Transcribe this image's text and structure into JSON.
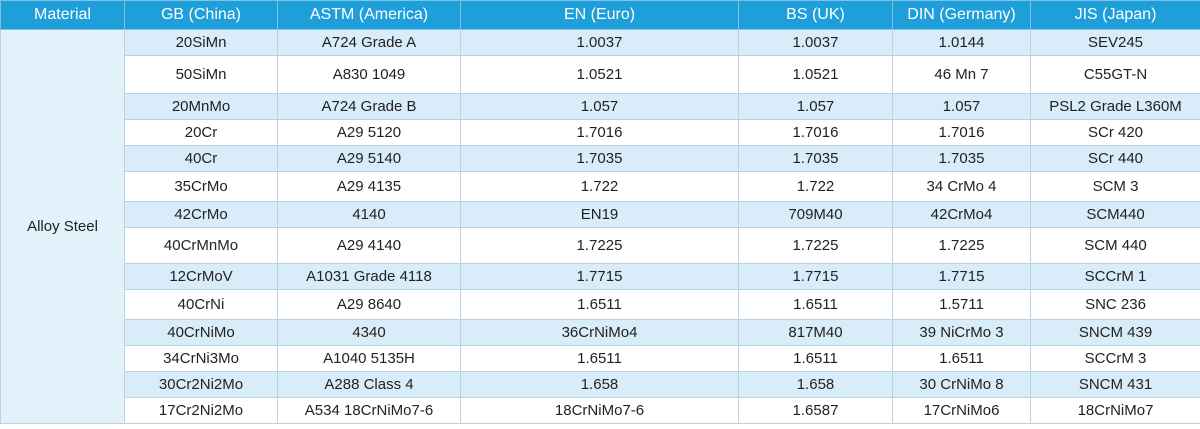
{
  "table": {
    "headers": [
      "Material",
      "GB (China)",
      "ASTM (America)",
      "EN (Euro)",
      "BS (UK)",
      "DIN (Germany)",
      "JIS (Japan)"
    ],
    "material": "Alloy Steel",
    "rows": [
      [
        "20SiMn",
        "A724 Grade A",
        "1.0037",
        "1.0037",
        "1.0144",
        "SEV245"
      ],
      [
        "50SiMn",
        "A830 1049",
        "1.0521",
        "1.0521",
        "46 Mn 7",
        "C55GT-N"
      ],
      [
        "20MnMo",
        "A724 Grade B",
        "1.057",
        "1.057",
        "1.057",
        "PSL2 Grade L360M"
      ],
      [
        "20Cr",
        "A29 5120",
        "1.7016",
        "1.7016",
        "1.7016",
        "SCr 420"
      ],
      [
        "40Cr",
        "A29 5140",
        "1.7035",
        "1.7035",
        "1.7035",
        "SCr 440"
      ],
      [
        "35CrMo",
        "A29 4135",
        "1.722",
        "1.722",
        "34 CrMo 4",
        "SCM 3"
      ],
      [
        "42CrMo",
        "4140",
        "EN19",
        "709M40",
        "42CrMo4",
        "SCM440"
      ],
      [
        "40CrMnMo",
        "A29 4140",
        "1.7225",
        "1.7225",
        "1.7225",
        "SCM 440"
      ],
      [
        "12CrMoV",
        "A1031  Grade 4118",
        "1.7715",
        "1.7715",
        "1.7715",
        "SCCrM 1"
      ],
      [
        "40CrNi",
        "A29 8640",
        "1.6511",
        "1.6511",
        "1.5711",
        "SNC 236"
      ],
      [
        "40CrNiMo",
        "4340",
        "36CrNiMo4",
        "817M40",
        "39 NiCrMo 3",
        "SNCM 439"
      ],
      [
        "34CrNi3Mo",
        "A1040 5135H",
        "1.6511",
        "1.6511",
        "1.6511",
        "SCCrM 3"
      ],
      [
        "30Cr2Ni2Mo",
        "A288 Class 4",
        "1.658",
        "1.658",
        "30 CrNiMo 8",
        "SNCM 431"
      ],
      [
        "17Cr2Ni2Mo",
        "A534 18CrNiMo7-6",
        "18CrNiMo7-6",
        "1.6587",
        "17CrNiMo6",
        "18CrNiMo7"
      ]
    ]
  }
}
